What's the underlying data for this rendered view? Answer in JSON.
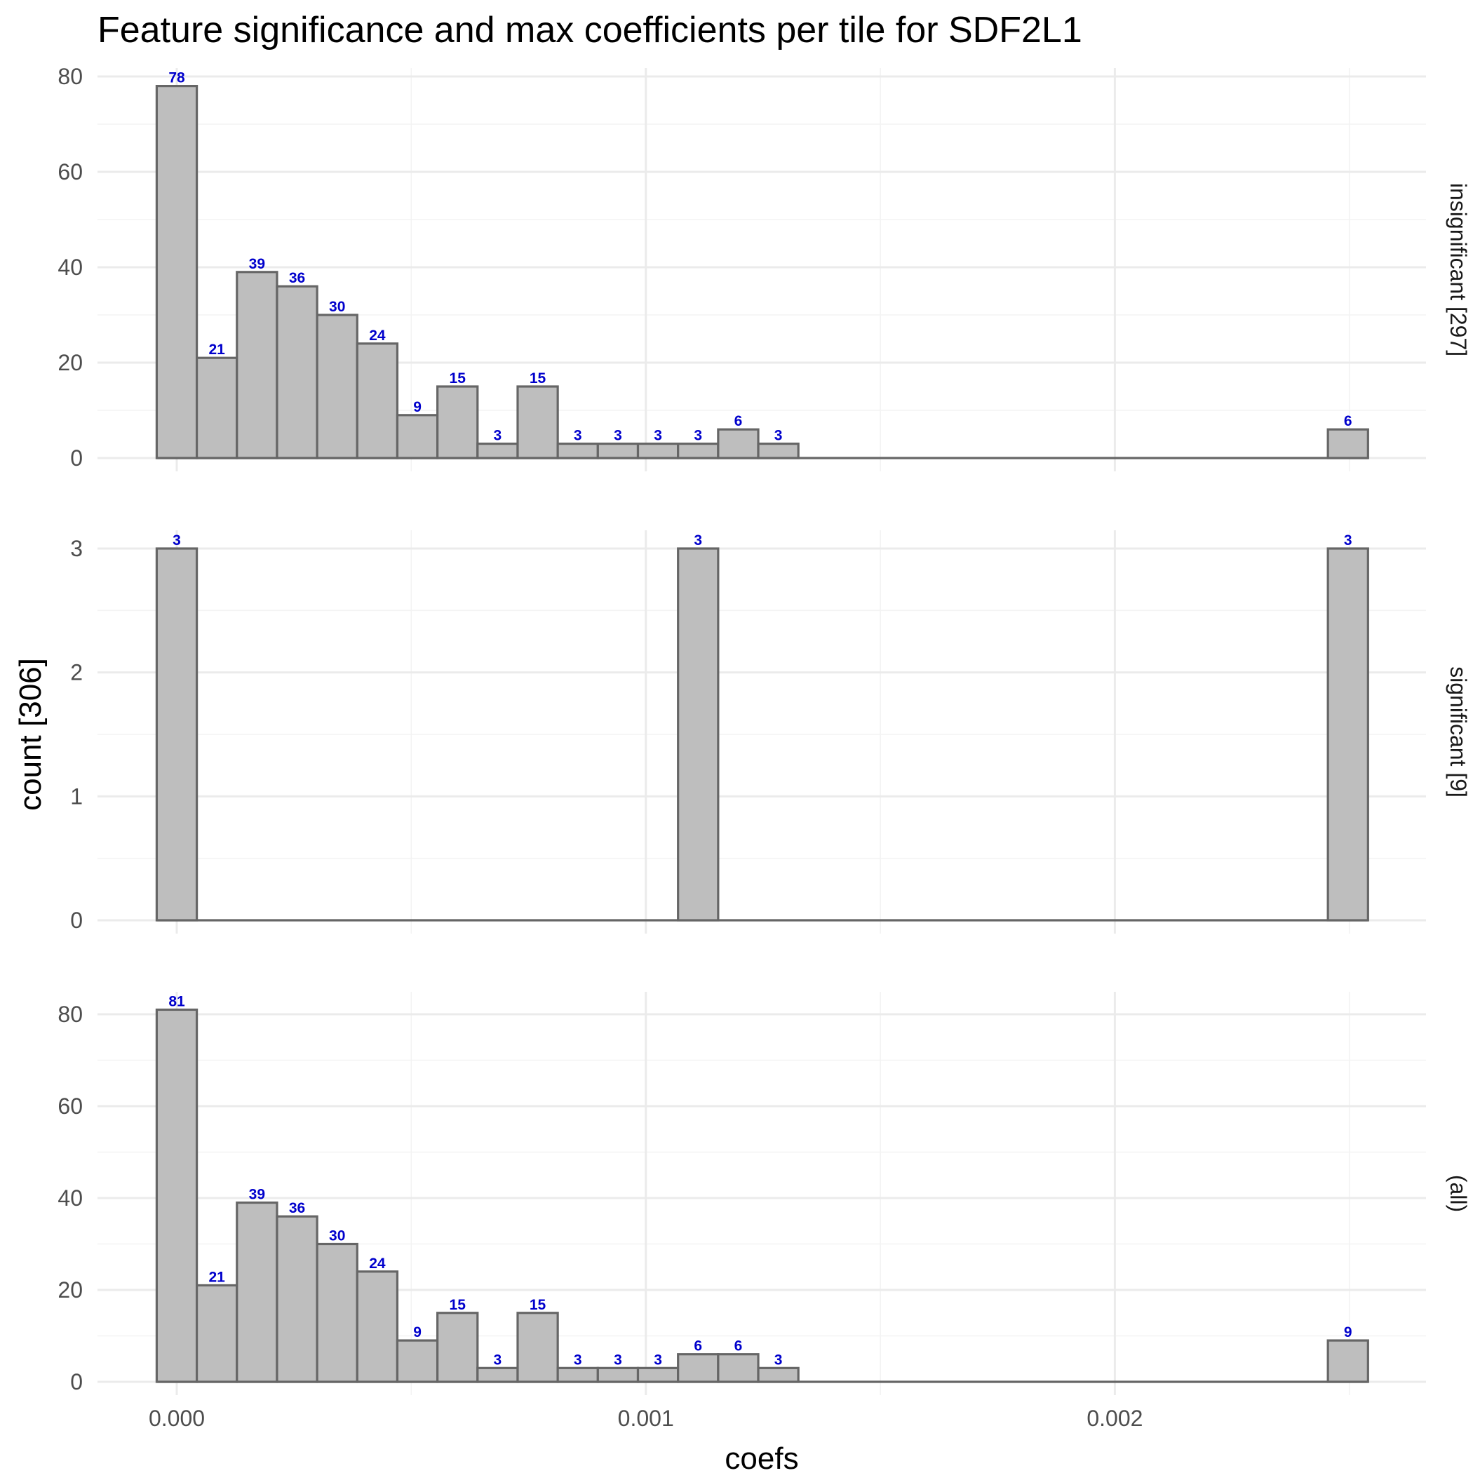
{
  "chart_data": {
    "type": "bar",
    "title": "Feature significance and max coefficients per tile for SDF2L1",
    "xlabel": "coefs",
    "ylabel": "count [306]",
    "bin_width": 8.55e-05,
    "x_tick_labels": [
      "0.000",
      "0.001",
      "0.002"
    ],
    "x_ticks": [
      0,
      0.001,
      0.002
    ],
    "xlim": [
      -0.00017,
      0.00266
    ],
    "panels": [
      {
        "label": "insignificant [297]",
        "ylim": [
          0,
          82
        ],
        "y_ticks": [
          0,
          20,
          40,
          60,
          80
        ],
        "bins": [
          {
            "x": 0.0,
            "count": 78
          },
          {
            "x": 8.55e-05,
            "count": 21
          },
          {
            "x": 0.000171,
            "count": 39
          },
          {
            "x": 0.0002565,
            "count": 36
          },
          {
            "x": 0.000342,
            "count": 30
          },
          {
            "x": 0.0004275,
            "count": 24
          },
          {
            "x": 0.000513,
            "count": 9
          },
          {
            "x": 0.0005985,
            "count": 15
          },
          {
            "x": 0.000684,
            "count": 3
          },
          {
            "x": 0.0007695,
            "count": 15
          },
          {
            "x": 0.000855,
            "count": 3
          },
          {
            "x": 0.0009405,
            "count": 3
          },
          {
            "x": 0.001026,
            "count": 3
          },
          {
            "x": 0.0011115,
            "count": 3
          },
          {
            "x": 0.001197,
            "count": 6
          },
          {
            "x": 0.0012825,
            "count": 3
          },
          {
            "x": 0.002497,
            "count": 6
          }
        ]
      },
      {
        "label": "significant [9]",
        "ylim": [
          0,
          3.15
        ],
        "y_ticks": [
          0,
          1,
          2,
          3
        ],
        "bins": [
          {
            "x": 0.0,
            "count": 3
          },
          {
            "x": 0.0011115,
            "count": 3
          },
          {
            "x": 0.002497,
            "count": 3
          }
        ]
      },
      {
        "label": "(all)",
        "ylim": [
          0,
          85
        ],
        "y_ticks": [
          0,
          20,
          40,
          60,
          80
        ],
        "bins": [
          {
            "x": 0.0,
            "count": 81
          },
          {
            "x": 8.55e-05,
            "count": 21
          },
          {
            "x": 0.000171,
            "count": 39
          },
          {
            "x": 0.0002565,
            "count": 36
          },
          {
            "x": 0.000342,
            "count": 30
          },
          {
            "x": 0.0004275,
            "count": 24
          },
          {
            "x": 0.000513,
            "count": 9
          },
          {
            "x": 0.0005985,
            "count": 15
          },
          {
            "x": 0.000684,
            "count": 3
          },
          {
            "x": 0.0007695,
            "count": 15
          },
          {
            "x": 0.000855,
            "count": 3
          },
          {
            "x": 0.0009405,
            "count": 3
          },
          {
            "x": 0.001026,
            "count": 3
          },
          {
            "x": 0.0011115,
            "count": 6
          },
          {
            "x": 0.001197,
            "count": 6
          },
          {
            "x": 0.0012825,
            "count": 3
          },
          {
            "x": 0.002497,
            "count": 9
          }
        ]
      }
    ],
    "colors": {
      "bar_fill": "#bebebe",
      "bar_outline": "#666666",
      "count_label": "#0000cc",
      "grid": "#ebebeb"
    },
    "grid": true,
    "legend": "none"
  }
}
